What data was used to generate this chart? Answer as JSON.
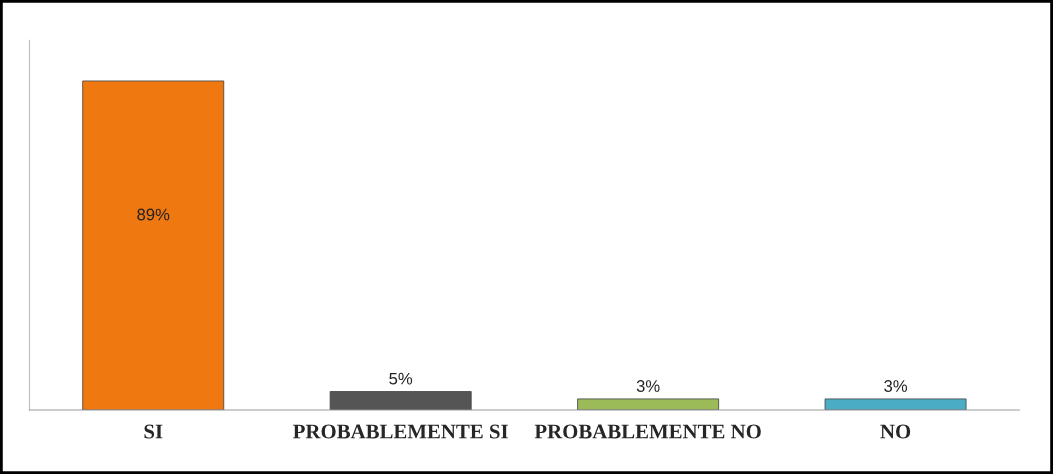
{
  "chart_data": {
    "type": "bar",
    "categories": [
      "SI",
      "PROBABLEMENTE SI",
      "PROBABLEMENTE NO",
      "NO"
    ],
    "values": [
      89,
      5,
      3,
      3
    ],
    "colors": [
      "#f07810",
      "#555555",
      "#9bbb59",
      "#4bacc6"
    ],
    "value_labels": [
      "89%",
      "5%",
      "3%",
      "3%"
    ],
    "ylim": [
      0,
      100
    ],
    "tick_labels": "x",
    "grid": false,
    "legend": false
  }
}
